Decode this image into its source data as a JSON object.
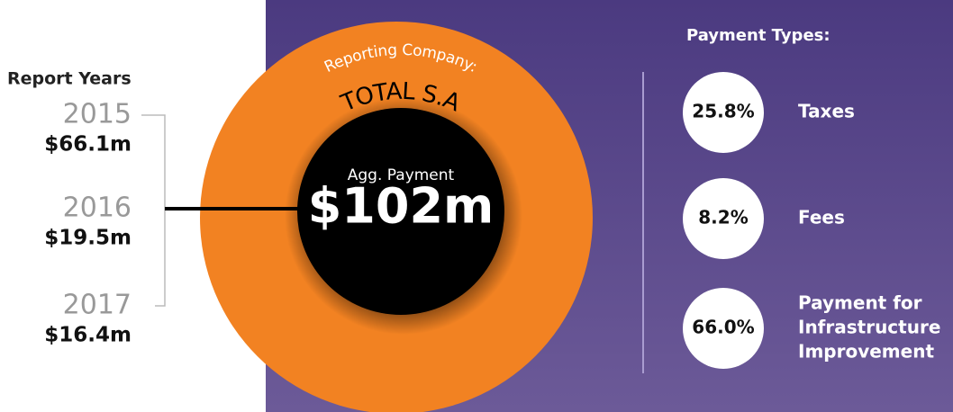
{
  "report_years": {
    "title": "Report Years",
    "items": [
      {
        "year": "2015",
        "amount": "$66.1m"
      },
      {
        "year": "2016",
        "amount": "$19.5m"
      },
      {
        "year": "2017",
        "amount": "$16.4m"
      }
    ]
  },
  "company": {
    "label": "Reporting Company:",
    "name": "TOTAL S.A"
  },
  "aggregate": {
    "label": "Agg. Payment",
    "value": "$102m"
  },
  "payment_types": {
    "title": "Payment Types:",
    "items": [
      {
        "share": "25.8%",
        "label": [
          "Taxes"
        ]
      },
      {
        "share": "8.2%",
        "label": [
          "Fees"
        ]
      },
      {
        "share": "66.0%",
        "label": [
          "Payment for",
          "Infrastructure",
          "Improvement"
        ]
      }
    ]
  }
}
